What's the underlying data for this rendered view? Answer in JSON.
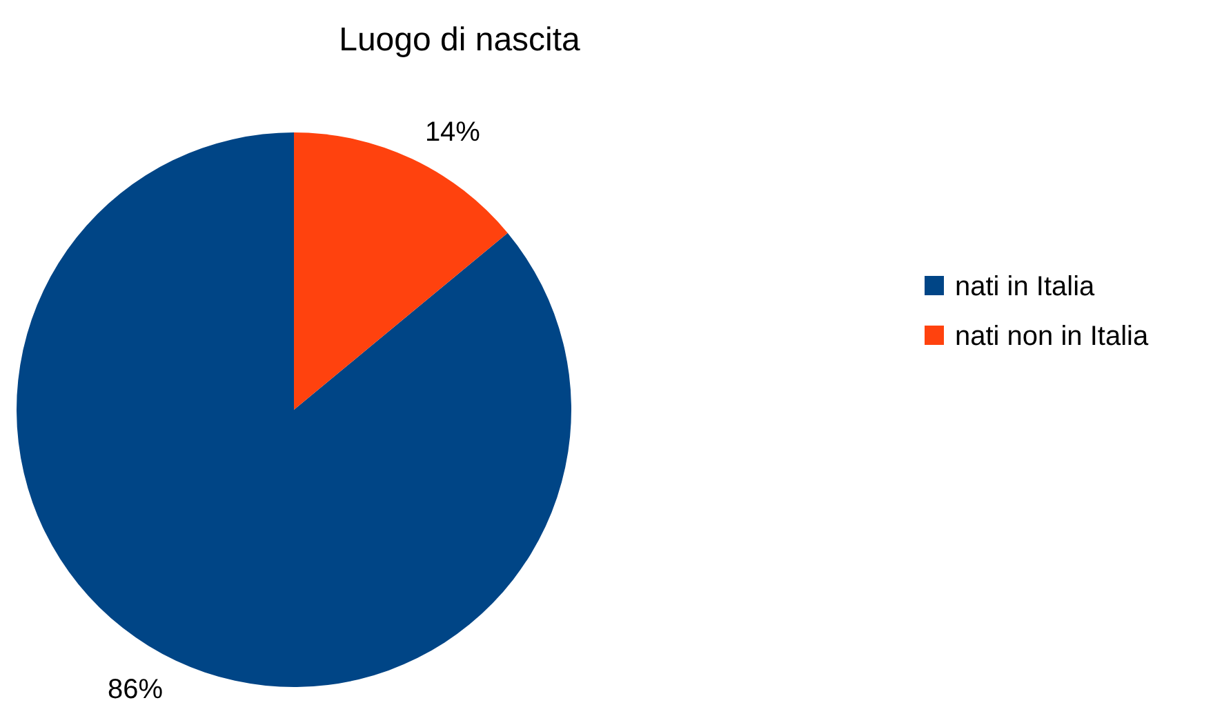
{
  "chart_data": {
    "type": "pie",
    "title": "Luogo di nascita",
    "categories": [
      "nati in Italia",
      "nati non in Italia"
    ],
    "values": [
      86,
      14
    ],
    "value_labels": [
      "86%",
      "14%"
    ],
    "colors": [
      "#004586",
      "#ff420e"
    ],
    "legend": "right"
  }
}
